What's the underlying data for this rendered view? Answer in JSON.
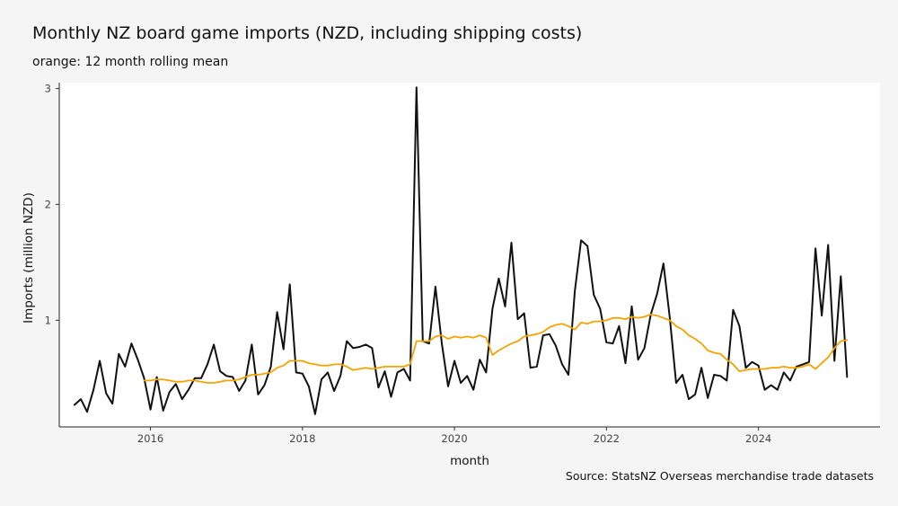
{
  "chart_data": {
    "type": "line",
    "title": "Monthly NZ board game imports (NZD, including shipping costs)",
    "subtitle": "orange: 12 month rolling mean",
    "caption": "Source: StatsNZ Overseas merchandise trade datasets",
    "xlabel": "month",
    "ylabel": "Imports (million NZD)",
    "xlim": [
      2014.8,
      2025.6
    ],
    "ylim": [
      0.08,
      3.05
    ],
    "x_ticks": [
      2016,
      2018,
      2020,
      2022,
      2024
    ],
    "y_ticks": [
      1,
      2,
      3
    ],
    "x_tick_labels": [
      "2016",
      "2018",
      "2020",
      "2022",
      "2024"
    ],
    "y_tick_labels": [
      "1",
      "2",
      "3"
    ],
    "grid": false,
    "start_year": 2015,
    "series": [
      {
        "color": "#111111",
        "values": [
          0.27,
          0.32,
          0.21,
          0.4,
          0.65,
          0.37,
          0.28,
          0.71,
          0.6,
          0.8,
          0.66,
          0.5,
          0.23,
          0.51,
          0.22,
          0.38,
          0.45,
          0.32,
          0.4,
          0.5,
          0.5,
          0.62,
          0.79,
          0.56,
          0.52,
          0.51,
          0.39,
          0.48,
          0.79,
          0.36,
          0.44,
          0.6,
          1.07,
          0.75,
          1.31,
          0.55,
          0.54,
          0.43,
          0.19,
          0.49,
          0.55,
          0.39,
          0.52,
          0.82,
          0.76,
          0.77,
          0.79,
          0.76,
          0.42,
          0.56,
          0.34,
          0.55,
          0.58,
          0.48,
          3.01,
          0.82,
          0.8,
          1.29,
          0.8,
          0.43,
          0.65,
          0.46,
          0.52,
          0.4,
          0.66,
          0.55,
          1.1,
          1.36,
          1.12,
          1.67,
          1.01,
          1.06,
          0.59,
          0.6,
          0.87,
          0.88,
          0.78,
          0.62,
          0.53,
          1.25,
          1.69,
          1.64,
          1.22,
          1.1,
          0.81,
          0.8,
          0.95,
          0.63,
          1.12,
          0.66,
          0.76,
          1.05,
          1.23,
          1.49,
          1.02,
          0.46,
          0.53,
          0.32,
          0.36,
          0.59,
          0.33,
          0.53,
          0.52,
          0.48,
          1.09,
          0.95,
          0.59,
          0.64,
          0.61,
          0.4,
          0.44,
          0.4,
          0.55,
          0.48,
          0.6,
          0.62,
          0.64,
          1.62,
          1.04,
          1.65,
          0.65,
          1.38,
          0.51
        ]
      },
      {
        "color": "#f5a300",
        "values": [
          null,
          null,
          null,
          null,
          null,
          null,
          null,
          null,
          null,
          null,
          null,
          0.48,
          0.48,
          0.49,
          0.49,
          0.48,
          0.47,
          0.47,
          0.48,
          0.48,
          0.47,
          0.46,
          0.46,
          0.47,
          0.48,
          0.48,
          0.49,
          0.51,
          0.53,
          0.53,
          0.54,
          0.55,
          0.59,
          0.61,
          0.65,
          0.65,
          0.65,
          0.63,
          0.62,
          0.61,
          0.61,
          0.62,
          0.62,
          0.6,
          0.57,
          0.58,
          0.59,
          0.58,
          0.59,
          0.6,
          0.6,
          0.6,
          0.6,
          0.62,
          0.82,
          0.82,
          0.82,
          0.86,
          0.87,
          0.84,
          0.86,
          0.85,
          0.86,
          0.85,
          0.87,
          0.85,
          0.7,
          0.74,
          0.77,
          0.8,
          0.82,
          0.86,
          0.87,
          0.88,
          0.9,
          0.94,
          0.96,
          0.97,
          0.95,
          0.92,
          0.98,
          0.97,
          0.99,
          0.99,
          1.0,
          1.02,
          1.02,
          1.01,
          1.03,
          1.02,
          1.03,
          1.05,
          1.04,
          1.02,
          1.0,
          0.95,
          0.92,
          0.87,
          0.84,
          0.8,
          0.74,
          0.72,
          0.71,
          0.66,
          0.62,
          0.56,
          0.57,
          0.58,
          0.58,
          0.58,
          0.59,
          0.59,
          0.6,
          0.59,
          0.59,
          0.6,
          0.62,
          0.58,
          0.63,
          0.68,
          0.76,
          0.82,
          0.83
        ]
      }
    ]
  }
}
